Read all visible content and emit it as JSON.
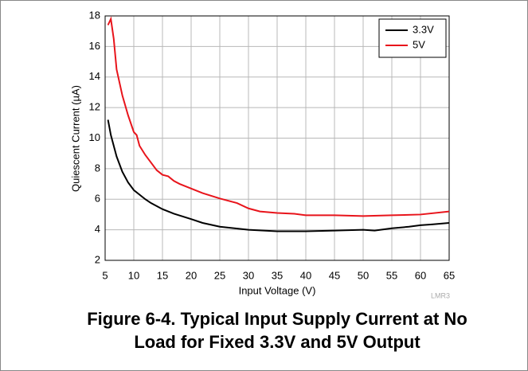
{
  "chart_data": {
    "type": "line",
    "title": [
      "Figure 6-4. Typical Input Supply Current at No",
      "Load for Fixed 3.3V and 5V Output"
    ],
    "xlabel": "Input Voltage (V)",
    "ylabel": "Quiescent Current (µA)",
    "annotation": "LMR3",
    "xlim": [
      5,
      65
    ],
    "ylim": [
      2,
      18
    ],
    "xticks": [
      5,
      10,
      15,
      20,
      25,
      30,
      35,
      40,
      45,
      50,
      55,
      60,
      65
    ],
    "yticks": [
      2,
      4,
      6,
      8,
      10,
      12,
      14,
      16,
      18
    ],
    "grid": true,
    "legend": "upper right",
    "series": [
      {
        "name": "3.3V",
        "color": "#000000",
        "x": [
          5.5,
          6,
          7,
          8,
          9,
          10,
          11,
          12,
          13,
          15,
          17,
          20,
          22,
          25,
          30,
          35,
          40,
          45,
          50,
          52,
          55,
          58,
          60,
          62,
          65
        ],
        "values": [
          11.2,
          10.2,
          8.8,
          7.8,
          7.1,
          6.6,
          6.3,
          6.0,
          5.75,
          5.35,
          5.05,
          4.7,
          4.45,
          4.2,
          4.0,
          3.9,
          3.9,
          3.95,
          4.0,
          3.95,
          4.1,
          4.2,
          4.3,
          4.35,
          4.45
        ]
      },
      {
        "name": "5V",
        "color": "#e8141b",
        "x": [
          5.5,
          6,
          6.5,
          7,
          8,
          9,
          10,
          10.5,
          11,
          12,
          13,
          14,
          15,
          16,
          17,
          18,
          20,
          22,
          25,
          28,
          30,
          32,
          35,
          38,
          40,
          45,
          50,
          55,
          60,
          65
        ],
        "values": [
          17.4,
          17.8,
          16.5,
          14.5,
          12.8,
          11.5,
          10.4,
          10.2,
          9.5,
          8.9,
          8.4,
          7.9,
          7.6,
          7.5,
          7.2,
          7.0,
          6.7,
          6.4,
          6.05,
          5.75,
          5.4,
          5.2,
          5.1,
          5.05,
          4.95,
          4.95,
          4.9,
          4.95,
          5.0,
          5.2
        ]
      }
    ]
  }
}
